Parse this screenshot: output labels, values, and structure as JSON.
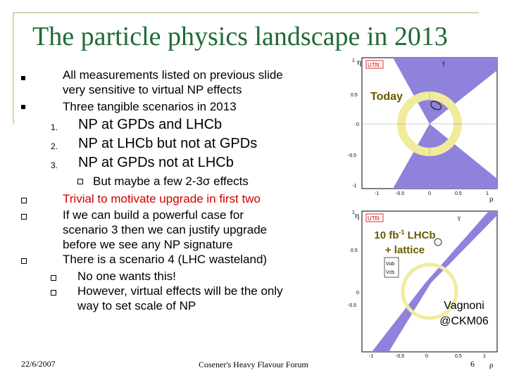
{
  "slide": {
    "title": "The particle physics landscape in 2013",
    "bullets": {
      "b1": "All measurements listed on previous slide very sensitive to virtual NP effects",
      "b1_line1": "All measurements listed on previous slide",
      "b1_line2": "very sensitive to virtual NP effects",
      "b2": "Three tangible scenarios in 2013",
      "list": [
        {
          "n": "1.",
          "text": "NP at GPDs and LHCb"
        },
        {
          "n": "2.",
          "text": "NP at LHCb but not at GPDs"
        },
        {
          "n": "3.",
          "text": "NP at GPDs not at LHCb"
        }
      ],
      "sub3": "But maybe a few 2-3σ effects",
      "b3": "Trivial to motivate upgrade in first two",
      "b4_lines": [
        "If we can build a powerful case for",
        "scenario 3 then we can justify upgrade",
        "before we see any NP signature"
      ],
      "b5": "There is a scenario 4 (LHC wasteland)",
      "sub5a": "No one wants this!",
      "sub5b_lines": [
        "However, virtual effects will be the only",
        "way to set scale of NP"
      ]
    },
    "plots": {
      "top_label": "Today",
      "bottom_label_lines": [
        "10 fb-1 LHCb",
        "+ lattice"
      ],
      "fb_prefix": "10 fb",
      "fb_sup": "-1",
      "fb_suffix": " LHCb",
      "credit_lines": [
        "Vagnoni",
        "@CKM06"
      ],
      "axis_eta": "η",
      "axis_rho": "ρ",
      "gamma": "γ",
      "top_yticks": [
        "1",
        "0.5",
        "0",
        "-0.5",
        "-1"
      ],
      "top_xticks": [
        "-1",
        "-0.5",
        "0",
        "0.5",
        "1"
      ],
      "bot_yticks": [
        "1",
        "0.5",
        "0",
        "-0.5"
      ],
      "bot_xticks": [
        "-1",
        "-0.5",
        "0",
        "0.5",
        "1"
      ],
      "vub": "Vub",
      "vcb": "Vcb",
      "logo": "UTfit"
    },
    "footer": {
      "date": "22/6/2007",
      "venue": "Cosener's Heavy Flavour Forum",
      "page": "6"
    }
  }
}
